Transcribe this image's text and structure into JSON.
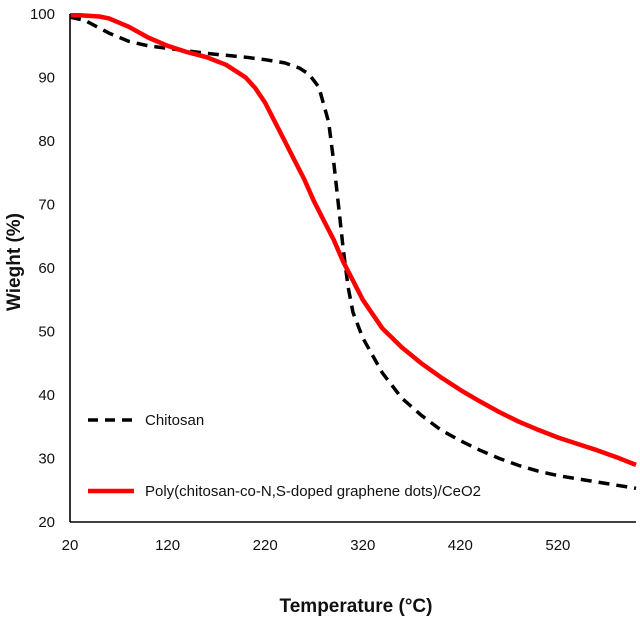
{
  "chart_data": {
    "type": "line",
    "xlabel": "Temperature (°C)",
    "ylabel": "Wieght (%)",
    "xlim": [
      20,
      600
    ],
    "ylim": [
      20,
      100
    ],
    "xticks": [
      "20",
      "120",
      "220",
      "320",
      "420",
      "520"
    ],
    "yticks": [
      "20",
      "30",
      "40",
      "50",
      "60",
      "70",
      "80",
      "90",
      "100"
    ],
    "grid": false,
    "legend_position": "bottom-left",
    "series": [
      {
        "name": "Chitosan",
        "color": "#000000",
        "style": "dashed",
        "x": [
          20,
          35,
          50,
          60,
          80,
          100,
          120,
          140,
          160,
          180,
          200,
          220,
          240,
          255,
          265,
          275,
          285,
          290,
          295,
          300,
          305,
          310,
          320,
          340,
          360,
          380,
          400,
          420,
          440,
          460,
          480,
          500,
          520,
          540,
          560,
          580,
          600
        ],
        "y": [
          99.5,
          99,
          97.8,
          97,
          95.7,
          95,
          94.6,
          94.2,
          93.8,
          93.5,
          93.2,
          92.8,
          92.3,
          91.5,
          90.5,
          88.5,
          83,
          77,
          70,
          63,
          57,
          53,
          49,
          43.5,
          39.5,
          36.8,
          34.5,
          32.8,
          31.3,
          30,
          28.9,
          28,
          27.3,
          26.8,
          26.3,
          25.8,
          25.3
        ]
      },
      {
        "name": "Poly(chitosan-co-N,S-doped graphene dots)/CeO2",
        "color": "#ff0000",
        "style": "solid",
        "x": [
          20,
          30,
          40,
          50,
          60,
          80,
          100,
          120,
          140,
          160,
          180,
          200,
          210,
          220,
          230,
          240,
          250,
          260,
          270,
          280,
          290,
          300,
          310,
          320,
          340,
          360,
          380,
          400,
          420,
          440,
          460,
          480,
          500,
          520,
          540,
          560,
          580,
          600
        ],
        "y": [
          99.8,
          99.8,
          99.7,
          99.6,
          99.3,
          98,
          96.3,
          95,
          94,
          93.2,
          92,
          90,
          88.3,
          86,
          83,
          80,
          77,
          74,
          70.5,
          67.5,
          64.5,
          61,
          58,
          55,
          50.5,
          47.5,
          45,
          42.8,
          40.8,
          39,
          37.3,
          35.8,
          34.5,
          33.3,
          32.3,
          31.3,
          30.2,
          29
        ]
      }
    ]
  }
}
